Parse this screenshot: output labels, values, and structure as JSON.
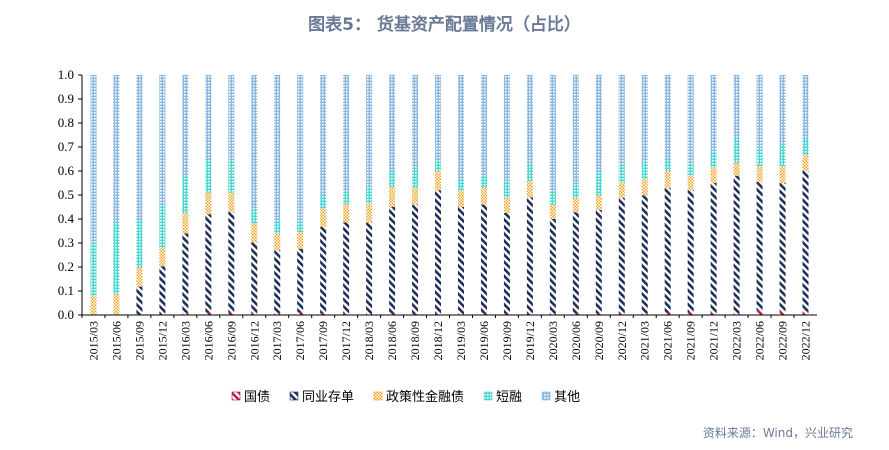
{
  "chart_data": {
    "type": "bar",
    "stacked": true,
    "title": "图表5： 货基资产配置情况（占比）",
    "source": "资料来源：Wind，兴业研究",
    "ylim": [
      0,
      1
    ],
    "yticks": [
      "0.0",
      "0.1",
      "0.2",
      "0.3",
      "0.4",
      "0.5",
      "0.6",
      "0.7",
      "0.8",
      "0.9",
      "1.0"
    ],
    "grid": false,
    "legend_position": "bottom",
    "categories": [
      "2015/03",
      "2015/06",
      "2015/09",
      "2015/12",
      "2016/03",
      "2016/06",
      "2016/09",
      "2016/12",
      "2017/03",
      "2017/06",
      "2017/09",
      "2017/12",
      "2018/03",
      "2018/06",
      "2018/09",
      "2018/12",
      "2019/03",
      "2019/06",
      "2019/09",
      "2019/12",
      "2020/03",
      "2020/06",
      "2020/09",
      "2020/12",
      "2021/03",
      "2021/06",
      "2021/09",
      "2021/12",
      "2022/03",
      "2022/06",
      "2022/09",
      "2022/12"
    ],
    "series": [
      {
        "name": "国债",
        "color": "#c0143c",
        "pattern": "hatch",
        "values": [
          0.003,
          0.003,
          0.003,
          0.003,
          0.01,
          0.01,
          0.01,
          0.008,
          0.01,
          0.01,
          0.008,
          0.006,
          0.005,
          0.005,
          0.005,
          0.005,
          0.005,
          0.005,
          0.005,
          0.005,
          0.005,
          0.008,
          0.008,
          0.008,
          0.008,
          0.01,
          0.01,
          0.01,
          0.01,
          0.02,
          0.02,
          0.015
        ]
      },
      {
        "name": "同业存单",
        "color": "#1f2f55",
        "pattern": "hatch",
        "values": [
          0.0,
          0.0,
          0.115,
          0.2,
          0.33,
          0.41,
          0.42,
          0.295,
          0.26,
          0.265,
          0.36,
          0.38,
          0.38,
          0.445,
          0.455,
          0.515,
          0.445,
          0.455,
          0.42,
          0.485,
          0.395,
          0.42,
          0.43,
          0.48,
          0.49,
          0.52,
          0.51,
          0.54,
          0.57,
          0.535,
          0.53,
          0.585
        ]
      },
      {
        "name": "政策性金融债",
        "color": "#f0a020",
        "pattern": "dots",
        "values": [
          0.075,
          0.085,
          0.08,
          0.075,
          0.085,
          0.09,
          0.08,
          0.08,
          0.07,
          0.07,
          0.075,
          0.075,
          0.08,
          0.085,
          0.07,
          0.08,
          0.07,
          0.07,
          0.065,
          0.07,
          0.06,
          0.06,
          0.06,
          0.065,
          0.07,
          0.07,
          0.06,
          0.065,
          0.055,
          0.065,
          0.07,
          0.065
        ]
      },
      {
        "name": "短融",
        "color": "#4ed6d2",
        "pattern": "grid",
        "values": [
          0.22,
          0.3,
          0.2,
          0.18,
          0.15,
          0.14,
          0.13,
          0.06,
          0.055,
          0.045,
          0.055,
          0.055,
          0.07,
          0.065,
          0.08,
          0.045,
          0.045,
          0.05,
          0.07,
          0.065,
          0.06,
          0.06,
          0.1,
          0.07,
          0.07,
          0.05,
          0.05,
          0.065,
          0.1,
          0.07,
          0.09,
          0.07
        ]
      },
      {
        "name": "其他",
        "color": "#8ab8e0",
        "pattern": "grid",
        "values": [
          0.702,
          0.612,
          0.602,
          0.542,
          0.425,
          0.35,
          0.36,
          0.557,
          0.605,
          0.61,
          0.502,
          0.484,
          0.465,
          0.4,
          0.39,
          0.355,
          0.435,
          0.42,
          0.44,
          0.375,
          0.48,
          0.452,
          0.402,
          0.377,
          0.362,
          0.35,
          0.37,
          0.32,
          0.265,
          0.31,
          0.29,
          0.265
        ]
      }
    ]
  }
}
